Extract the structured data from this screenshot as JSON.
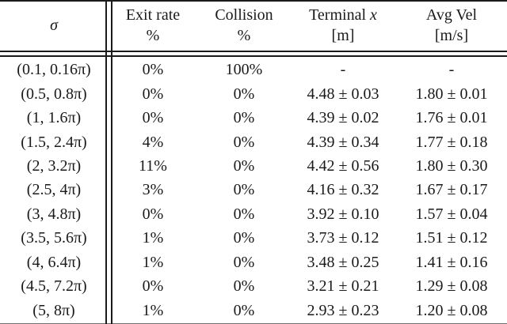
{
  "table": {
    "description": "results-table",
    "header": {
      "sigma": "σ",
      "exit": {
        "line1": "Exit rate",
        "line2": "%"
      },
      "collision": {
        "line1": "Collision",
        "line2": "%"
      },
      "terminal": {
        "line1": "Terminal",
        "math": "x",
        "line2": "[m]"
      },
      "avgvel": {
        "line1": "Avg Vel",
        "line2": "[m/s]"
      }
    },
    "rows": [
      [
        "(0.1, 0.16π)",
        "0%",
        "100%",
        "-",
        "-"
      ],
      [
        "(0.5, 0.8π)",
        "0%",
        "0%",
        "4.48 ± 0.03",
        "1.80 ± 0.01"
      ],
      [
        "(1, 1.6π)",
        "0%",
        "0%",
        "4.39 ± 0.02",
        "1.76 ± 0.01"
      ],
      [
        "(1.5, 2.4π)",
        "4%",
        "0%",
        "4.39 ± 0.34",
        "1.77 ± 0.18"
      ],
      [
        "(2, 3.2π)",
        "11%",
        "0%",
        "4.42 ± 0.56",
        "1.80 ± 0.30"
      ],
      [
        "(2.5, 4π)",
        "3%",
        "0%",
        "4.16 ± 0.32",
        "1.67 ± 0.17"
      ],
      [
        "(3, 4.8π)",
        "0%",
        "0%",
        "3.92 ± 0.10",
        "1.57 ± 0.04"
      ],
      [
        "(3.5, 5.6π)",
        "1%",
        "0%",
        "3.73 ± 0.12",
        "1.51 ± 0.12"
      ],
      [
        "(4, 6.4π)",
        "1%",
        "0%",
        "3.48 ± 0.25",
        "1.41 ± 0.16"
      ],
      [
        "(4.5, 7.2π)",
        "0%",
        "0%",
        "3.21 ± 0.21",
        "1.29 ± 0.08"
      ],
      [
        "(5, 8π)",
        "1%",
        "0%",
        "2.93 ± 0.23",
        "1.20 ± 0.08"
      ]
    ],
    "colors": {
      "text": "#1a1a1a",
      "rule": "#1a1a1a",
      "bottom_rule": "#6e6e6e",
      "background": "#ffffff"
    }
  }
}
